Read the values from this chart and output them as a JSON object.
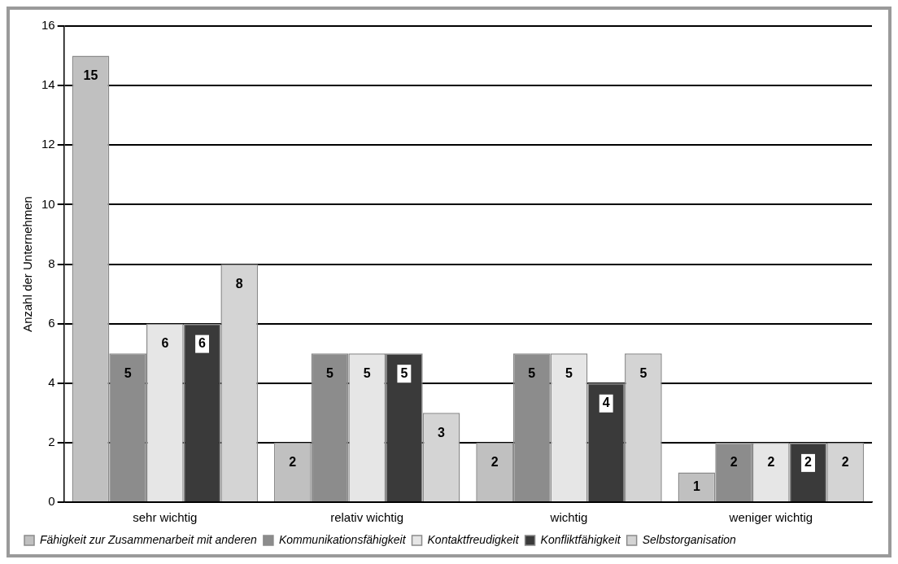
{
  "chart_data": {
    "type": "bar",
    "ylabel": "Anzahl der Unternehmen",
    "categories": [
      "sehr wichtig",
      "relativ wichtig",
      "wichtig",
      "weniger wichtig"
    ],
    "series": [
      {
        "name": "Fähigkeit zur Zusammenarbeit mit anderen",
        "color": "#c0c0c0",
        "values": [
          15,
          2,
          2,
          1
        ]
      },
      {
        "name": "Kommunikationsfähigkeit",
        "color": "#8c8c8c",
        "values": [
          5,
          5,
          5,
          2
        ]
      },
      {
        "name": "Kontaktfreudigkeit",
        "color": "#e6e6e6",
        "values": [
          6,
          5,
          5,
          2
        ]
      },
      {
        "name": "Konfliktfähigkeit",
        "color": "#3a3a3a",
        "values": [
          6,
          5,
          4,
          2
        ]
      },
      {
        "name": "Selbstorganisation",
        "color": "#d4d4d4",
        "values": [
          8,
          3,
          5,
          2
        ]
      }
    ],
    "ylim": [
      0,
      16
    ],
    "yticks": [
      0,
      2,
      4,
      6,
      8,
      10,
      12,
      14,
      16
    ],
    "grid": "y",
    "legend": "bottom",
    "data_labels": true
  }
}
